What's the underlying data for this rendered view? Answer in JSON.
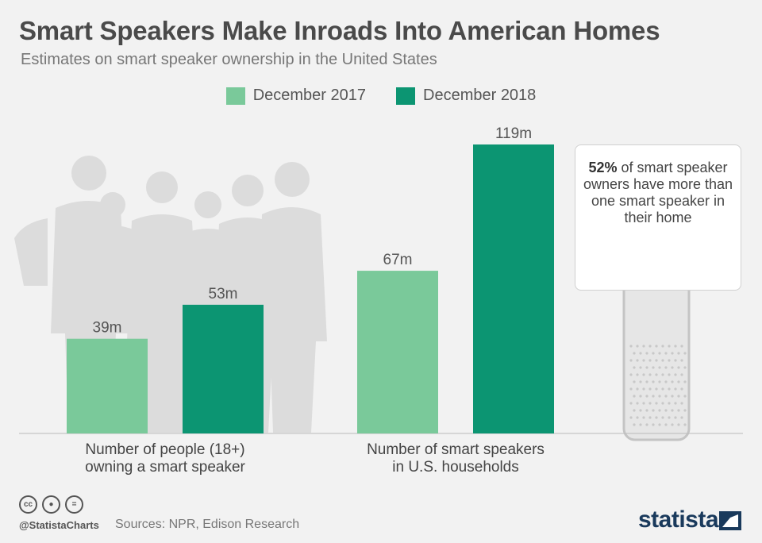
{
  "title": "Smart Speakers Make Inroads Into American Homes",
  "subtitle": "Estimates on smart speaker ownership in the United States",
  "legend": [
    {
      "label": "December 2017",
      "color": "#7ac99a"
    },
    {
      "label": "December 2018",
      "color": "#0c9572"
    }
  ],
  "callout": {
    "highlight": "52%",
    "text": " of smart speaker owners have more than one smart speaker in their home"
  },
  "chart_data": {
    "type": "bar",
    "categories": [
      [
        "Number of people (18+)",
        "owning a smart speaker"
      ],
      [
        "Number of smart speakers",
        "in U.S. households"
      ]
    ],
    "series": [
      {
        "name": "December 2017",
        "values": [
          39,
          67
        ],
        "labels": [
          "39m",
          "67m"
        ],
        "color": "#7ac99a"
      },
      {
        "name": "December 2018",
        "values": [
          53,
          119
        ],
        "labels": [
          "53m",
          "119m"
        ],
        "color": "#0c9572"
      }
    ],
    "unit": "m",
    "ylim": [
      0,
      119
    ],
    "grid": false,
    "legend_position": "top-center"
  },
  "footer": {
    "handle": "@StatistaCharts",
    "sources": "Sources: NPR, Edison Research",
    "brand": "statista",
    "icons": [
      "cc-icon",
      "attribution-icon",
      "no-derivatives-icon"
    ]
  }
}
